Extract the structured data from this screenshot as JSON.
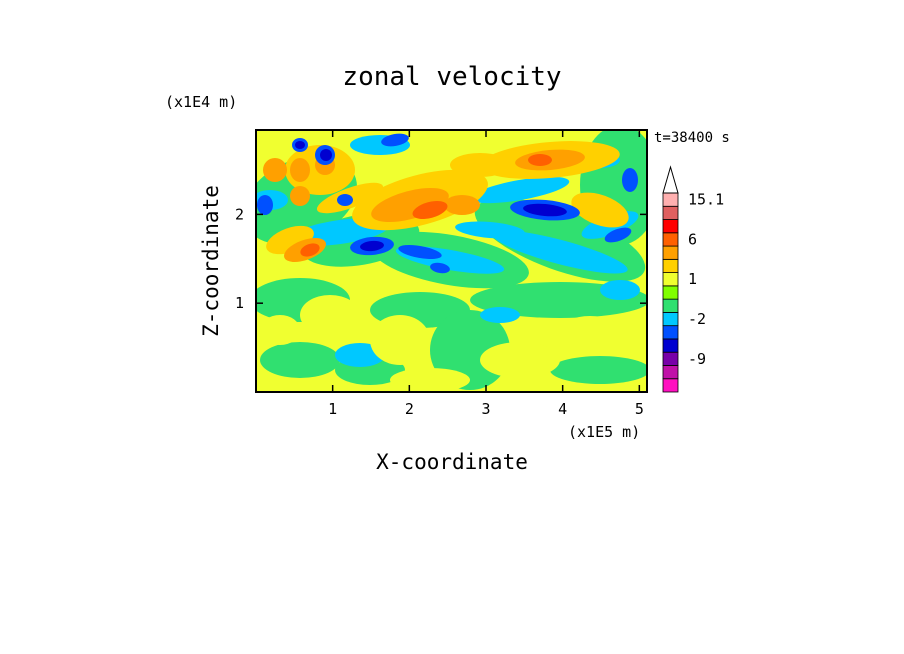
{
  "chart_data": {
    "type": "heatmap",
    "title": "zonal velocity",
    "xlabel": "X-coordinate",
    "ylabel": "Z-coordinate",
    "x_multiplier": "(x1E5 m)",
    "y_multiplier": "(x1E4 m)",
    "time_label": "t=38400 s",
    "xlim": [
      0,
      5.1
    ],
    "ylim": [
      0,
      2.95
    ],
    "x_ticks": [
      {
        "value": 1,
        "label": "1"
      },
      {
        "value": 2,
        "label": "2"
      },
      {
        "value": 3,
        "label": "3"
      },
      {
        "value": 4,
        "label": "4"
      },
      {
        "value": 5,
        "label": "5"
      }
    ],
    "y_ticks": [
      {
        "value": 1,
        "label": "1"
      },
      {
        "value": 2,
        "label": "2"
      }
    ],
    "colorbar": {
      "levels": [
        -15,
        -12,
        -9,
        -6,
        -3,
        -2,
        -1,
        0,
        1,
        2,
        3,
        6,
        9,
        12,
        15.1
      ],
      "colors": [
        "#ff10c0",
        "#c010a8",
        "#7800a8",
        "#0000d0",
        "#0050ff",
        "#00c8ff",
        "#30e070",
        "#80ff00",
        "#f0ff30",
        "#ffd000",
        "#ffa000",
        "#ff6000",
        "#ff0000",
        "#e06060",
        "#ffb0b0"
      ],
      "labels": [
        {
          "value": 15.1,
          "label": "15.1"
        },
        {
          "value": 6,
          "label": "6"
        },
        {
          "value": 1,
          "label": "1"
        },
        {
          "value": -2,
          "label": "-2"
        },
        {
          "value": -9,
          "label": "-9"
        }
      ]
    }
  }
}
